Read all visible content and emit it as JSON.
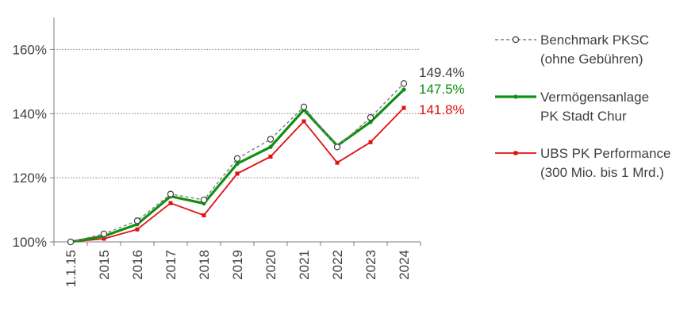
{
  "chart_data": {
    "type": "line",
    "title": "",
    "xlabel": "",
    "ylabel": "",
    "categories": [
      "1.1.15",
      "2015",
      "2016",
      "2017",
      "2018",
      "2019",
      "2020",
      "2021",
      "2022",
      "2023",
      "2024"
    ],
    "ylim": [
      100,
      170
    ],
    "yticks": [
      100,
      120,
      140,
      160
    ],
    "ytick_labels": [
      "100%",
      "120%",
      "140%",
      "160%"
    ],
    "grid": "horizontal dotted at 120%, 140%, 160%",
    "legend_position": "right",
    "series": [
      {
        "name": "Benchmark PKSC (ohne Gebühren)",
        "name_lines": [
          "Benchmark PKSC",
          "(ohne Gebühren)"
        ],
        "color": "#7f7f7f",
        "style": "dashed",
        "marker": "open-circle",
        "values": [
          100.0,
          102.5,
          106.6,
          114.9,
          113.1,
          126.0,
          132.0,
          142.1,
          129.6,
          138.8,
          149.4
        ],
        "end_label": "149.4%"
      },
      {
        "name": "Vermögensanlage PK Stadt Chur",
        "name_lines": [
          "Vermögensanlage",
          "PK Stadt Chur"
        ],
        "color": "#109010",
        "style": "solid-thick",
        "marker": "dot",
        "values": [
          100.0,
          101.8,
          105.5,
          114.2,
          112.0,
          124.4,
          129.6,
          141.2,
          130.0,
          137.4,
          147.5
        ],
        "end_label": "147.5%"
      },
      {
        "name": "UBS PK Performance (300 Mio. bis 1 Mrd.)",
        "name_lines": [
          "UBS PK Performance",
          "(300 Mio. bis 1 Mrd.)"
        ],
        "color": "#e01010",
        "style": "solid",
        "marker": "square",
        "values": [
          100.0,
          101.0,
          103.9,
          112.1,
          108.3,
          121.3,
          126.6,
          137.6,
          124.7,
          131.1,
          141.8
        ],
        "end_label": "141.8%"
      }
    ]
  }
}
